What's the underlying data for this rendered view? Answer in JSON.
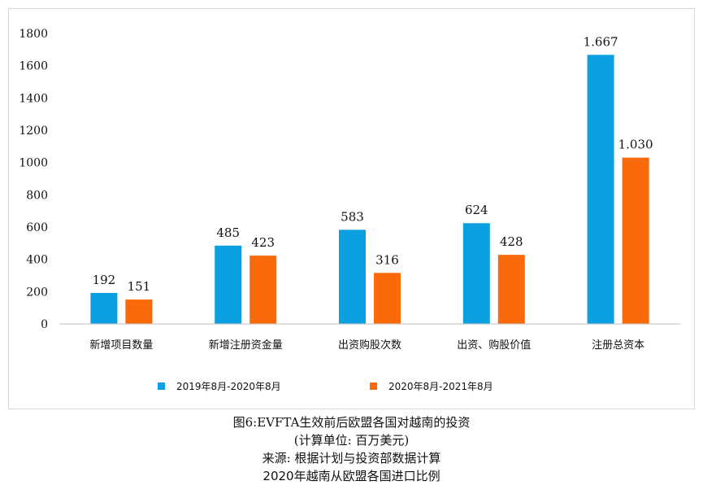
{
  "chart_data": {
    "type": "bar",
    "categories": [
      "新增项目数量",
      "新增注册资金量",
      "出资购股次数",
      "出资、购股价值",
      "注册总资本"
    ],
    "series": [
      {
        "name": "2019年8月-2020年8月",
        "values": [
          192,
          485,
          583,
          624,
          1667
        ],
        "labels": [
          "192",
          "485",
          "583",
          "624",
          "1.667"
        ],
        "color": "#0ca0e2"
      },
      {
        "name": "2020年8月-2021年8月",
        "values": [
          151,
          423,
          316,
          428,
          1030
        ],
        "labels": [
          "151",
          "423",
          "316",
          "428",
          "1.030"
        ],
        "color": "#fb6a0a"
      }
    ],
    "yticks": [
      "0",
      "200",
      "400",
      "600",
      "800",
      "1000",
      "1200",
      "1400",
      "1600",
      "1800"
    ],
    "ylim": [
      0,
      1800
    ],
    "legend_position": "bottom",
    "grid": false
  },
  "caption": {
    "line1": "图6:EVFTA生效前后欧盟各国对越南的投资",
    "line2": "(计算单位: 百万美元)",
    "line3": "来源: 根据计划与投资部数据计算",
    "line4": "2020年越南从欧盟各国进口比例"
  }
}
